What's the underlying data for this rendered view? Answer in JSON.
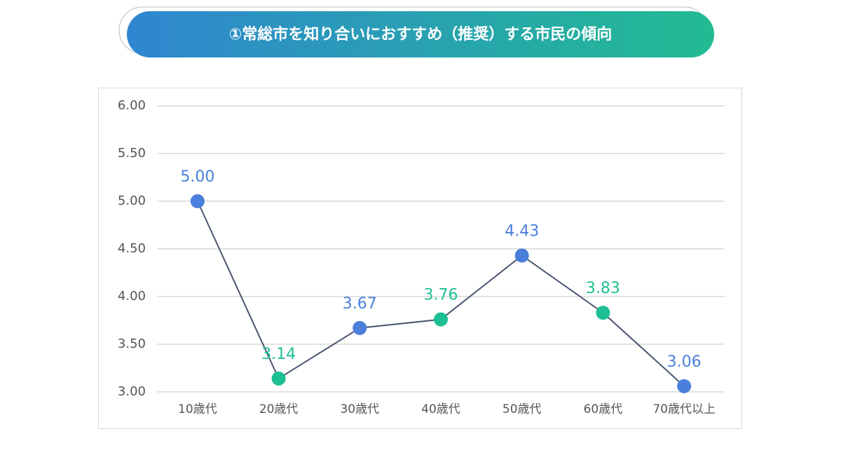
{
  "chart_data": {
    "type": "line",
    "title": "①常総市を知り合いにおすすめ（推奨）する市民の傾向",
    "categories": [
      "10歳代",
      "20歳代",
      "30歳代",
      "40歳代",
      "50歳代",
      "60歳代",
      "70歳代以上"
    ],
    "values": [
      5.0,
      3.14,
      3.67,
      3.76,
      4.43,
      3.83,
      3.06
    ],
    "value_labels": [
      "5.00",
      "3.14",
      "3.67",
      "3.76",
      "4.43",
      "3.83",
      "3.06"
    ],
    "line_color": "#4a5570",
    "point_colors": [
      "#4a7fdb",
      "#1dbf95",
      "#4a7fdb",
      "#1dbf95",
      "#4a7fdb",
      "#1dbf95",
      "#4a7fdb"
    ],
    "ylim": [
      3,
      6
    ],
    "yticks": [
      {
        "value": 3,
        "label": "3.00"
      },
      {
        "value": 3.5,
        "label": "3.50"
      },
      {
        "value": 4,
        "label": "4.00"
      },
      {
        "value": 4.5,
        "label": "4.50"
      },
      {
        "value": 5,
        "label": "5.00"
      },
      {
        "value": 5.5,
        "label": "5.50"
      },
      {
        "value": 6,
        "label": "6.00"
      }
    ],
    "grid": true
  }
}
